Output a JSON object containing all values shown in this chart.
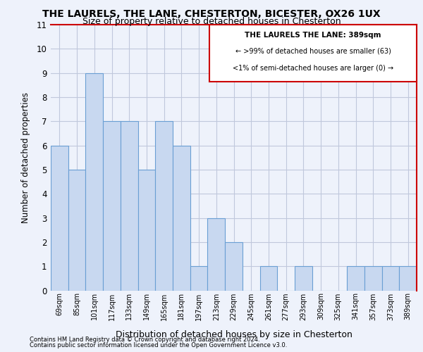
{
  "title_line1": "THE LAURELS, THE LANE, CHESTERTON, BICESTER, OX26 1UX",
  "title_line2": "Size of property relative to detached houses in Chesterton",
  "xlabel": "Distribution of detached houses by size in Chesterton",
  "ylabel": "Number of detached properties",
  "categories": [
    "69sqm",
    "85sqm",
    "101sqm",
    "117sqm",
    "133sqm",
    "149sqm",
    "165sqm",
    "181sqm",
    "197sqm",
    "213sqm",
    "229sqm",
    "245sqm",
    "261sqm",
    "277sqm",
    "293sqm",
    "309sqm",
    "325sqm",
    "341sqm",
    "357sqm",
    "373sqm",
    "389sqm"
  ],
  "values": [
    6,
    5,
    9,
    7,
    7,
    5,
    7,
    6,
    1,
    3,
    2,
    0,
    1,
    0,
    1,
    0,
    0,
    1,
    1,
    1,
    1
  ],
  "bar_color": "#c8d8f0",
  "bar_edge_color": "#6a9fd4",
  "highlight_index": 20,
  "highlight_border_color": "#cc0000",
  "annotation_title": "THE LAURELS THE LANE: 389sqm",
  "annotation_line1": "← >99% of detached houses are smaller (63)",
  "annotation_line2": "<1% of semi-detached houses are larger (0) →",
  "ylim": [
    0,
    11
  ],
  "yticks": [
    0,
    1,
    2,
    3,
    4,
    5,
    6,
    7,
    8,
    9,
    10,
    11
  ],
  "footer_line1": "Contains HM Land Registry data © Crown copyright and database right 2024.",
  "footer_line2": "Contains public sector information licensed under the Open Government Licence v3.0.",
  "background_color": "#eef2fb",
  "plot_bg_color": "#eef2fb",
  "grid_color": "#c0c8dc"
}
